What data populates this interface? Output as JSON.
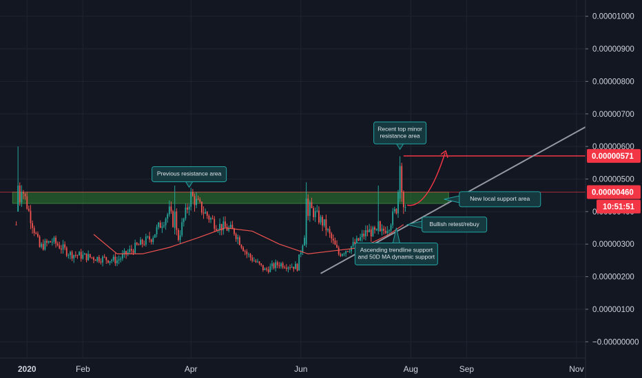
{
  "chart_data": {
    "type": "candlestick",
    "colors": {
      "background": "#131722",
      "grid": "#1f2430",
      "up": "#26a69a",
      "down": "#ef5350",
      "ma_line": "#ef5350",
      "resistance_line": "#f23645",
      "support_zone": "#2e7d32",
      "trendline": "#9598a1",
      "annotation_bg": "#15393e",
      "annotation_border": "#22a5a5",
      "price_tag": "#f23645",
      "axis_text": "#d1d4dc"
    },
    "y_axis": {
      "ylim": [
        -5e-07,
        1.05e-05
      ],
      "ticks": [
        {
          "value": 1e-05,
          "label": "0.00001000"
        },
        {
          "value": 9e-06,
          "label": "0.00000900"
        },
        {
          "value": 8e-06,
          "label": "0.00000800"
        },
        {
          "value": 7e-06,
          "label": "0.00000700"
        },
        {
          "value": 6e-06,
          "label": "0.00000600"
        },
        {
          "value": 5e-06,
          "label": "0.00000500"
        },
        {
          "value": 4e-06,
          "label": "0.00000400"
        },
        {
          "value": 3e-06,
          "label": "0.00000300"
        },
        {
          "value": 2e-06,
          "label": "0.00000200"
        },
        {
          "value": 1e-06,
          "label": "0.00000100"
        },
        {
          "value": -1e-10,
          "label": "−0.00000000"
        }
      ]
    },
    "x_axis": {
      "xlim": [
        "2019-12-17",
        "2020-11-06"
      ],
      "ticks": [
        {
          "date": "2020-01-01",
          "label": "2020",
          "bold": true
        },
        {
          "date": "2020-02-01",
          "label": "Feb"
        },
        {
          "date": "2020-04-01",
          "label": "Apr"
        },
        {
          "date": "2020-06-01",
          "label": "Jun"
        },
        {
          "date": "2020-08-01",
          "label": "Aug"
        },
        {
          "date": "2020-09-01",
          "label": "Sep"
        },
        {
          "date": "2020-11-01",
          "label": "Nov"
        }
      ]
    },
    "price_tags": [
      {
        "value": 5.71e-06,
        "label": "0.00000571"
      },
      {
        "value": 4.6e-06,
        "label": "0.00000460",
        "countdown": "10:51:51"
      }
    ],
    "horizontal_lines": [
      {
        "value": 4.6e-06,
        "from": "2019-12-17",
        "to": "2020-11-06",
        "style": "thin"
      },
      {
        "value": 5.71e-06,
        "from": "2020-07-28",
        "to": "2020-11-06",
        "style": "resistance"
      }
    ],
    "support_zone": {
      "from": "2019-12-24",
      "to": "2020-08-22",
      "low": 4.25e-06,
      "high": 4.6e-06
    },
    "trendline": {
      "start": {
        "date": "2020-06-12",
        "value": 2.1e-06
      },
      "end": {
        "date": "2020-11-06",
        "value": 6.6e-06
      }
    },
    "projection_arrow": {
      "points": [
        [
          "2020-07-30",
          4.2e-06
        ],
        [
          "2020-08-10",
          4.6e-06
        ],
        [
          "2020-08-20",
          5.8e-06
        ]
      ]
    },
    "ohlc_anchors": [
      [
        "2019-12-26",
        3.6e-06
      ],
      [
        "2019-12-29",
        4.8e-06
      ],
      [
        "2020-01-02",
        4e-06
      ],
      [
        "2020-01-08",
        2.9e-06
      ],
      [
        "2020-01-15",
        3.1e-06
      ],
      [
        "2020-01-25",
        2.7e-06
      ],
      [
        "2020-02-05",
        2.6e-06
      ],
      [
        "2020-02-20",
        2.5e-06
      ],
      [
        "2020-03-01",
        2.9e-06
      ],
      [
        "2020-03-10",
        3.2e-06
      ],
      [
        "2020-03-20",
        4e-06
      ],
      [
        "2020-03-25",
        3.2e-06
      ],
      [
        "2020-04-01",
        4.5e-06
      ],
      [
        "2020-04-08",
        4e-06
      ],
      [
        "2020-04-15",
        3.6e-06
      ],
      [
        "2020-04-25",
        3.4e-06
      ],
      [
        "2020-05-02",
        2.7e-06
      ],
      [
        "2020-05-12",
        2.2e-06
      ],
      [
        "2020-05-20",
        2.4e-06
      ],
      [
        "2020-05-30",
        2.3e-06
      ],
      [
        "2020-06-06",
        4.1e-06
      ],
      [
        "2020-06-14",
        3.6e-06
      ],
      [
        "2020-06-22",
        2.7e-06
      ],
      [
        "2020-07-01",
        3e-06
      ],
      [
        "2020-07-08",
        3.4e-06
      ],
      [
        "2020-07-15",
        3.3e-06
      ],
      [
        "2020-07-20",
        3.6e-06
      ],
      [
        "2020-07-24",
        4.1e-06
      ],
      [
        "2020-07-26",
        5.2e-06
      ],
      [
        "2020-07-27",
        4.5e-06
      ],
      [
        "2020-07-29",
        4.2e-06
      ]
    ],
    "ma_50d": [
      [
        "2020-02-07",
        3.3e-06
      ],
      [
        "2020-02-20",
        2.7e-06
      ],
      [
        "2020-03-05",
        2.7e-06
      ],
      [
        "2020-03-20",
        2.9e-06
      ],
      [
        "2020-04-05",
        3.2e-06
      ],
      [
        "2020-04-20",
        3.5e-06
      ],
      [
        "2020-05-05",
        3.4e-06
      ],
      [
        "2020-05-20",
        3e-06
      ],
      [
        "2020-06-05",
        2.7e-06
      ],
      [
        "2020-06-20",
        2.8e-06
      ],
      [
        "2020-07-05",
        2.9e-06
      ],
      [
        "2020-07-20",
        3.3e-06
      ],
      [
        "2020-07-28",
        3.6e-06
      ]
    ],
    "annotations": [
      {
        "id": "prev-resistance",
        "text": [
          "Previous resistance area"
        ],
        "anchor": {
          "date": "2020-03-31",
          "value": 4.6e-06
        }
      },
      {
        "id": "recent-top",
        "text": [
          "Recent top minor",
          "resistance area"
        ],
        "anchor": {
          "date": "2020-07-26",
          "value": 5.7e-06
        }
      },
      {
        "id": "new-support",
        "text": [
          "New local support area"
        ],
        "anchor": {
          "date": "2020-08-18",
          "value": 4.4e-06
        }
      },
      {
        "id": "bullish-retest",
        "text": [
          "Bullish retest/rebuy"
        ],
        "anchor": {
          "date": "2020-07-26",
          "value": 3.6e-06
        }
      },
      {
        "id": "ascending-trendline",
        "text": [
          "Ascending trendline support",
          "and 50D MA dynamic support"
        ],
        "anchor": {
          "date": "2020-07-24",
          "value": 3.5e-06
        }
      }
    ]
  }
}
